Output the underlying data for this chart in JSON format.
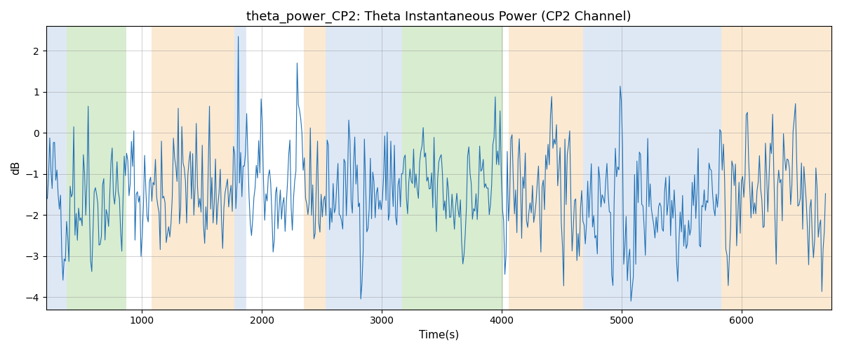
{
  "title": "theta_power_CP2: Theta Instantaneous Power (CP2 Channel)",
  "xlabel": "Time(s)",
  "ylabel": "dB",
  "xlim": [
    200,
    6750
  ],
  "ylim": [
    -4.3,
    2.6
  ],
  "line_color": "#2171b5",
  "line_width": 0.8,
  "background_bands": [
    {
      "xmin": 200,
      "xmax": 370,
      "color": "#aec6e8",
      "alpha": 0.4
    },
    {
      "xmin": 370,
      "xmax": 870,
      "color": "#90c97a",
      "alpha": 0.35
    },
    {
      "xmin": 870,
      "xmax": 1080,
      "color": "#ffffff",
      "alpha": 0.0
    },
    {
      "xmin": 1080,
      "xmax": 1770,
      "color": "#f5c990",
      "alpha": 0.4
    },
    {
      "xmin": 1770,
      "xmax": 1870,
      "color": "#aec6e8",
      "alpha": 0.4
    },
    {
      "xmin": 1870,
      "xmax": 2350,
      "color": "#ffffff",
      "alpha": 0.0
    },
    {
      "xmin": 2350,
      "xmax": 2530,
      "color": "#f5c990",
      "alpha": 0.4
    },
    {
      "xmin": 2530,
      "xmax": 2680,
      "color": "#aec6e8",
      "alpha": 0.4
    },
    {
      "xmin": 2680,
      "xmax": 3170,
      "color": "#aec6e8",
      "alpha": 0.4
    },
    {
      "xmin": 3170,
      "xmax": 4010,
      "color": "#90c97a",
      "alpha": 0.35
    },
    {
      "xmin": 4010,
      "xmax": 4060,
      "color": "#ffffff",
      "alpha": 0.0
    },
    {
      "xmin": 4060,
      "xmax": 4680,
      "color": "#f5c990",
      "alpha": 0.4
    },
    {
      "xmin": 4680,
      "xmax": 5830,
      "color": "#aec6e8",
      "alpha": 0.4
    },
    {
      "xmin": 5830,
      "xmax": 6750,
      "color": "#f5c990",
      "alpha": 0.4
    }
  ],
  "seed": 42,
  "n_points": 650,
  "t_start": 200,
  "t_end": 6700,
  "signal_mean": -1.5,
  "signal_std": 0.75,
  "ar_coef": 0.55,
  "figsize": [
    12,
    5
  ],
  "dpi": 100,
  "title_fontsize": 13,
  "label_fontsize": 11,
  "xticks": [
    1000,
    2000,
    3000,
    4000,
    5000,
    6000
  ]
}
